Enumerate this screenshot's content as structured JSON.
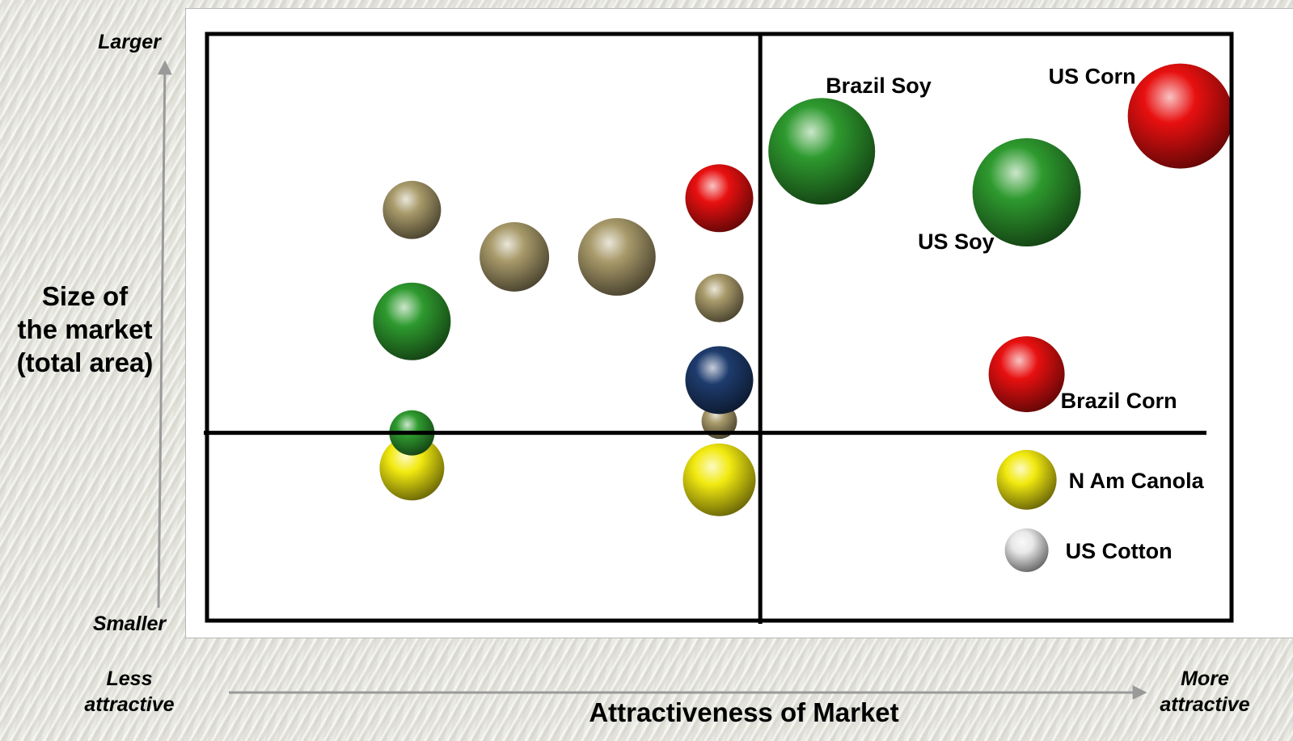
{
  "colors": {
    "brown": "#a89a6a",
    "green": "#2e9a2e",
    "red": "#e81010",
    "yellow": "#f2ea10",
    "navy": "#1e3c6e",
    "white": "#e8e8e8"
  },
  "y_axis": {
    "top_label": "Larger",
    "bottom_label": "Smaller",
    "title_lines": [
      "Size of",
      "the market",
      "(total area)"
    ]
  },
  "x_axis": {
    "left_label_lines": [
      "Less",
      "attractive"
    ],
    "right_label_lines": [
      "More",
      "attractive"
    ],
    "title": "Attractiveness of Market"
  },
  "chart_data": {
    "type": "scatter",
    "subtype": "bubble",
    "title": "",
    "xlabel": "Attractiveness of Market",
    "ylabel": "Size of the market (total area)",
    "xlim": [
      0,
      100
    ],
    "ylim": [
      0,
      100
    ],
    "quadrant_dividers": {
      "x": 54,
      "y": 32
    },
    "points": [
      {
        "x": 20,
        "y": 70,
        "size": 36,
        "color": "brown",
        "label": ""
      },
      {
        "x": 30,
        "y": 62,
        "size": 43,
        "color": "brown",
        "label": ""
      },
      {
        "x": 40,
        "y": 62,
        "size": 48,
        "color": "brown",
        "label": ""
      },
      {
        "x": 50,
        "y": 55,
        "size": 30,
        "color": "brown",
        "label": ""
      },
      {
        "x": 50,
        "y": 34,
        "size": 22,
        "color": "brown",
        "label": ""
      },
      {
        "x": 20,
        "y": 51,
        "size": 48,
        "color": "green",
        "label": ""
      },
      {
        "x": 20,
        "y": 26,
        "size": 40,
        "color": "yellow",
        "label": ""
      },
      {
        "x": 20,
        "y": 32,
        "size": 28,
        "color": "green",
        "label": ""
      },
      {
        "x": 50,
        "y": 24,
        "size": 45,
        "color": "yellow",
        "label": ""
      },
      {
        "x": 50,
        "y": 41,
        "size": 42,
        "color": "navy",
        "label": ""
      },
      {
        "x": 50,
        "y": 72,
        "size": 42,
        "color": "red",
        "label": ""
      },
      {
        "x": 60,
        "y": 80,
        "size": 66,
        "color": "green",
        "label": "Brazil Soy"
      },
      {
        "x": 80,
        "y": 73,
        "size": 67,
        "color": "green",
        "label": "US Soy"
      },
      {
        "x": 95,
        "y": 86,
        "size": 65,
        "color": "red",
        "label": "US Corn"
      },
      {
        "x": 80,
        "y": 42,
        "size": 47,
        "color": "red",
        "label": "Brazil Corn"
      },
      {
        "x": 80,
        "y": 24,
        "size": 37,
        "color": "yellow",
        "label": "N Am Canola"
      },
      {
        "x": 80,
        "y": 12,
        "size": 27,
        "color": "white",
        "label": "US Cotton"
      }
    ]
  }
}
